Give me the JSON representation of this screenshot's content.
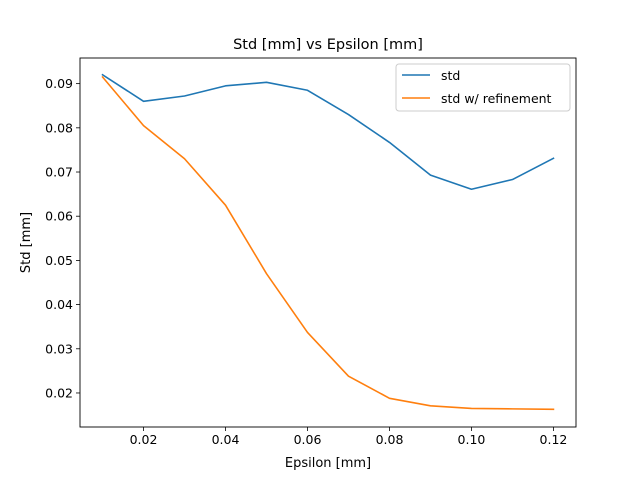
{
  "chart_data": {
    "type": "line",
    "title": "Std [mm] vs Epsilon [mm]",
    "xlabel": "Epsilon [mm]",
    "ylabel": "Std [mm]",
    "xlim": [
      0.0045,
      0.1255
    ],
    "ylim": [
      0.0123,
      0.0958
    ],
    "x": [
      0.01,
      0.02,
      0.03,
      0.04,
      0.05,
      0.06,
      0.07,
      0.08,
      0.09,
      0.1,
      0.11,
      0.12
    ],
    "series": [
      {
        "name": "std",
        "color": "#1f77b4",
        "values": [
          0.092,
          0.086,
          0.0872,
          0.0895,
          0.0903,
          0.0885,
          0.083,
          0.0767,
          0.0693,
          0.0661,
          0.0683,
          0.0731
        ]
      },
      {
        "name": "std w/ refinement",
        "color": "#ff7f0e",
        "values": [
          0.0915,
          0.0805,
          0.073,
          0.0625,
          0.047,
          0.0337,
          0.0238,
          0.0188,
          0.0171,
          0.0165,
          0.0164,
          0.0163
        ]
      }
    ],
    "xticks": [
      {
        "value": 0.02,
        "label": "0.02"
      },
      {
        "value": 0.04,
        "label": "0.04"
      },
      {
        "value": 0.06,
        "label": "0.06"
      },
      {
        "value": 0.08,
        "label": "0.08"
      },
      {
        "value": 0.1,
        "label": "0.10"
      },
      {
        "value": 0.12,
        "label": "0.12"
      }
    ],
    "yticks": [
      {
        "value": 0.02,
        "label": "0.02"
      },
      {
        "value": 0.03,
        "label": "0.03"
      },
      {
        "value": 0.04,
        "label": "0.04"
      },
      {
        "value": 0.05,
        "label": "0.05"
      },
      {
        "value": 0.06,
        "label": "0.06"
      },
      {
        "value": 0.07,
        "label": "0.07"
      },
      {
        "value": 0.08,
        "label": "0.08"
      },
      {
        "value": 0.09,
        "label": "0.09"
      }
    ],
    "grid": false,
    "legend_position": "top-right"
  }
}
